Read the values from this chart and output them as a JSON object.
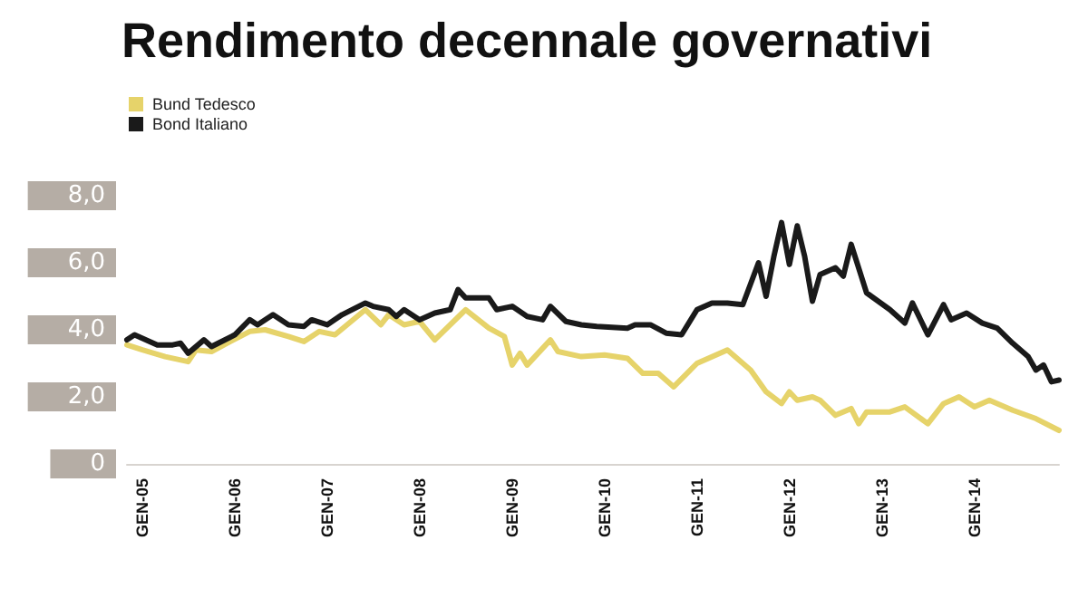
{
  "chart_data": {
    "type": "line",
    "title": "Rendimento decennale governativi",
    "legend": "top left",
    "grid": false,
    "marker": "none",
    "line_style": "solid",
    "xlim": [
      "2004-11",
      "2014-12"
    ],
    "xticks": [
      {
        "value": "2005-01",
        "label": "GEN-05"
      },
      {
        "value": "2006-01",
        "label": "GEN-06"
      },
      {
        "value": "2007-01",
        "label": "GEN-07"
      },
      {
        "value": "2008-01",
        "label": "GEN-08"
      },
      {
        "value": "2009-01",
        "label": "GEN-09"
      },
      {
        "value": "2010-01",
        "label": "GEN-10"
      },
      {
        "value": "2011-01",
        "label": "GEN-11"
      },
      {
        "value": "2012-01",
        "label": "GEN-12"
      },
      {
        "value": "2013-01",
        "label": "GEN-13"
      },
      {
        "value": "2014-01",
        "label": "GEN-14"
      }
    ],
    "ylim": [
      0,
      8
    ],
    "yticks": [
      {
        "value": 0,
        "label": "0"
      },
      {
        "value": 2,
        "label": "2,0"
      },
      {
        "value": 4,
        "label": "4,0"
      },
      {
        "value": 6,
        "label": "6,0"
      },
      {
        "value": 8,
        "label": "8,0"
      }
    ],
    "series": [
      {
        "name": "Bund Tedesco",
        "color": "#e6d36a",
        "x": [
          "2004-11",
          "2005-01",
          "2005-04",
          "2005-07",
          "2005-08",
          "2005-10",
          "2005-12",
          "2006-03",
          "2006-05",
          "2006-08",
          "2006-10",
          "2006-12",
          "2007-02",
          "2007-06",
          "2007-08",
          "2007-09",
          "2007-11",
          "2008-01",
          "2008-03",
          "2008-07",
          "2008-10",
          "2008-12",
          "2009-01",
          "2009-02",
          "2009-03",
          "2009-06",
          "2009-07",
          "2009-10",
          "2010-01",
          "2010-04",
          "2010-06",
          "2010-08",
          "2010-10",
          "2011-01",
          "2011-05",
          "2011-08",
          "2011-10",
          "2011-12",
          "2012-01",
          "2012-02",
          "2012-04",
          "2012-05",
          "2012-07",
          "2012-09",
          "2012-10",
          "2012-11",
          "2013-02",
          "2013-04",
          "2013-07",
          "2013-09",
          "2013-11",
          "2014-01",
          "2014-03",
          "2014-06",
          "2014-09",
          "2014-12"
        ],
        "values": [
          3.55,
          3.4,
          3.2,
          3.05,
          3.4,
          3.35,
          3.6,
          3.95,
          4.0,
          3.8,
          3.65,
          3.95,
          3.85,
          4.6,
          4.15,
          4.45,
          4.15,
          4.25,
          3.7,
          4.6,
          4.05,
          3.8,
          2.95,
          3.3,
          2.95,
          3.7,
          3.35,
          3.2,
          3.25,
          3.15,
          2.7,
          2.7,
          2.3,
          3.0,
          3.4,
          2.8,
          2.15,
          1.8,
          2.15,
          1.9,
          2.0,
          1.9,
          1.45,
          1.65,
          1.2,
          1.55,
          1.55,
          1.7,
          1.2,
          1.8,
          2.0,
          1.7,
          1.9,
          1.6,
          1.35,
          1.0
        ]
      },
      {
        "name": "Bond Italiano",
        "color": "#1a1a1a",
        "x": [
          "2004-11",
          "2004-12",
          "2005-03",
          "2005-05",
          "2005-06",
          "2005-07",
          "2005-09",
          "2005-10",
          "2006-01",
          "2006-03",
          "2006-04",
          "2006-06",
          "2006-08",
          "2006-10",
          "2006-11",
          "2007-01",
          "2007-03",
          "2007-06",
          "2007-07",
          "2007-09",
          "2007-10",
          "2007-11",
          "2008-01",
          "2008-03",
          "2008-05",
          "2008-06",
          "2008-07",
          "2008-10",
          "2008-11",
          "2009-01",
          "2009-03",
          "2009-05",
          "2009-06",
          "2009-08",
          "2009-10",
          "2009-12",
          "2010-04",
          "2010-05",
          "2010-07",
          "2010-09",
          "2010-11",
          "2011-01",
          "2011-03",
          "2011-05",
          "2011-07",
          "2011-09",
          "2011-10",
          "2011-11",
          "2011-12",
          "2012-01",
          "2012-02",
          "2012-03",
          "2012-04",
          "2012-05",
          "2012-07",
          "2012-08",
          "2012-09",
          "2012-11",
          "2013-02",
          "2013-04",
          "2013-05",
          "2013-07",
          "2013-09",
          "2013-10",
          "2013-12",
          "2014-02",
          "2014-04",
          "2014-06",
          "2014-08",
          "2014-09",
          "2014-10",
          "2014-11",
          "2014-12"
        ],
        "values": [
          3.7,
          3.85,
          3.55,
          3.55,
          3.6,
          3.3,
          3.7,
          3.5,
          3.85,
          4.3,
          4.15,
          4.45,
          4.15,
          4.1,
          4.3,
          4.15,
          4.45,
          4.8,
          4.7,
          4.6,
          4.4,
          4.6,
          4.3,
          4.5,
          4.6,
          5.2,
          4.95,
          4.95,
          4.6,
          4.7,
          4.4,
          4.3,
          4.7,
          4.25,
          4.15,
          4.1,
          4.05,
          4.15,
          4.15,
          3.9,
          3.85,
          4.6,
          4.8,
          4.8,
          4.75,
          6.0,
          5.0,
          6.2,
          7.2,
          5.95,
          7.1,
          6.2,
          4.85,
          5.65,
          5.85,
          5.6,
          6.55,
          5.1,
          4.6,
          4.2,
          4.8,
          3.85,
          4.75,
          4.3,
          4.5,
          4.2,
          4.05,
          3.6,
          3.2,
          2.8,
          2.95,
          2.45,
          2.5
        ]
      }
    ]
  }
}
